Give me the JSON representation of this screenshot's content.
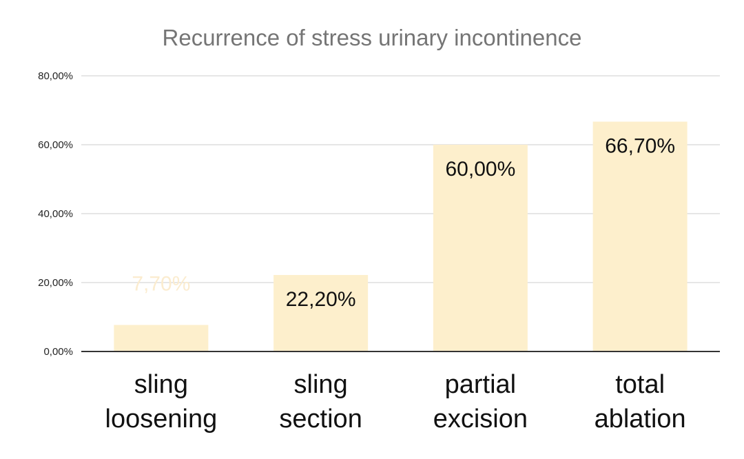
{
  "chart_data": {
    "type": "bar",
    "title": "Recurrence of stress urinary incontinence",
    "xlabel": "",
    "ylabel": "",
    "categories": [
      [
        "sling",
        "loosening"
      ],
      [
        "sling",
        "section"
      ],
      [
        "partial",
        "excision"
      ],
      [
        "total",
        "ablation"
      ]
    ],
    "values": [
      7.7,
      22.2,
      60.0,
      66.7
    ],
    "value_labels": [
      "7,70%",
      "22,20%",
      "60,00%",
      "66,70%"
    ],
    "ylim": [
      0,
      80
    ],
    "yticks": [
      0,
      20,
      40,
      60,
      80
    ],
    "ytick_labels": [
      "0,00%",
      "20,00%",
      "40,00%",
      "60,00%",
      "80,00%"
    ],
    "grid": true,
    "legend": "none",
    "colors": {
      "bar": "#fdefcc",
      "grid": "#dddddd",
      "axis": "#333333",
      "title": "#757575",
      "data_label": "#111111",
      "data_label_faint": "#fbeccf"
    }
  }
}
